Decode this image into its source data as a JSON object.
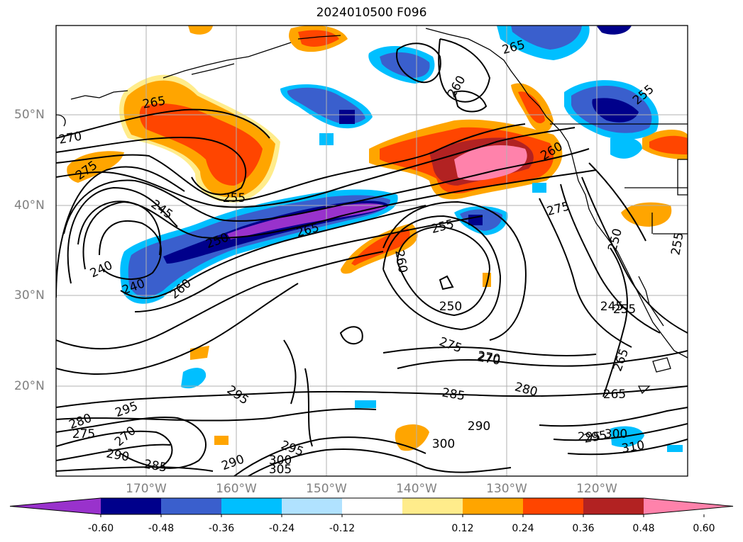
{
  "title": "2024010500 F096",
  "lat_labels": [
    "50°N",
    "40°N",
    "30°N",
    "20°N"
  ],
  "lon_labels": [
    "170°W",
    "160°W",
    "150°W",
    "140°W",
    "130°W",
    "120°W"
  ],
  "colorbar": {
    "colors": [
      "#9932cc",
      "#00008b",
      "#3a5fcd",
      "#00bfff",
      "#b0e2ff",
      "#ffffff",
      "#ffec8b",
      "#ffa500",
      "#ff4500",
      "#b22222",
      "#ff82ab"
    ],
    "ticks": [
      "-0.60",
      "-0.48",
      "-0.36",
      "-0.24",
      "-0.12",
      "0.12",
      "0.24",
      "0.36",
      "0.48",
      "0.60"
    ]
  },
  "contour_labels": [
    "265",
    "270",
    "275",
    "255",
    "245",
    "240",
    "240",
    "250",
    "260",
    "265",
    "260",
    "255",
    "250",
    "260",
    "275",
    "270",
    "265",
    "260",
    "255",
    "255",
    "250",
    "245",
    "255",
    "265",
    "275",
    "270",
    "285",
    "280",
    "265",
    "295",
    "295",
    "280",
    "275",
    "270",
    "295",
    "290",
    "285",
    "290",
    "300",
    "305",
    "295",
    "300",
    "290",
    "295",
    "300",
    "310"
  ]
}
